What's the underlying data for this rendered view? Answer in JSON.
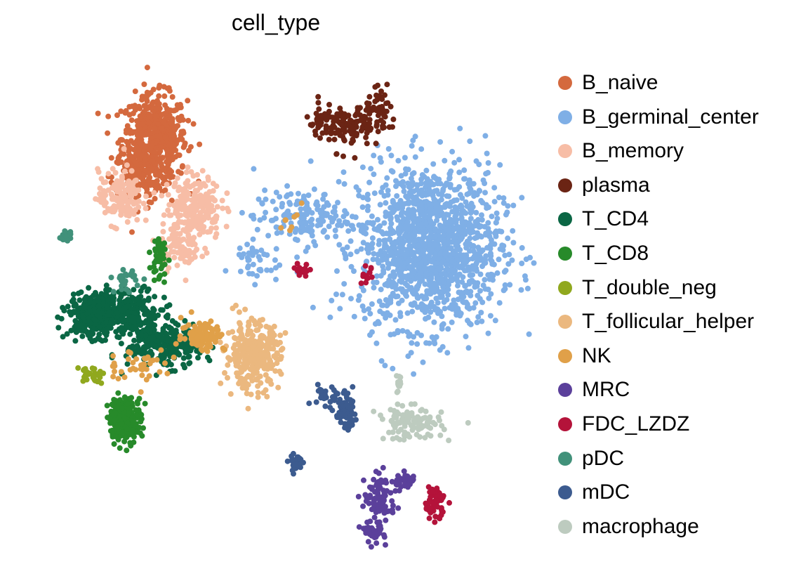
{
  "chart_data": {
    "type": "scatter",
    "title": "cell_type",
    "xlabel": "",
    "ylabel": "",
    "axes_visible": false,
    "grid": false,
    "legend_position": "right",
    "xlim": [
      0,
      100
    ],
    "ylim": [
      0,
      100
    ],
    "series": [
      {
        "name": "B_naive",
        "color": "#d4693e",
        "blobs": [
          [
            25,
            84,
            6,
            8,
            520
          ],
          [
            22,
            76,
            5,
            5,
            120
          ]
        ]
      },
      {
        "name": "B_germinal_center",
        "color": "#7fafe6",
        "blobs": [
          [
            81,
            62,
            13,
            15,
            1400
          ],
          [
            55,
            68,
            9,
            5,
            150
          ],
          [
            45,
            59,
            5,
            4,
            40
          ]
        ]
      },
      {
        "name": "B_memory",
        "color": "#f7bda6",
        "blobs": [
          [
            18,
            72,
            4,
            5,
            150
          ],
          [
            33,
            70,
            5,
            6,
            240
          ],
          [
            30,
            62,
            4,
            4,
            80
          ]
        ]
      },
      {
        "name": "plasma",
        "color": "#6b2414",
        "blobs": [
          [
            65,
            86,
            4,
            4,
            90
          ],
          [
            71,
            89,
            3,
            4,
            60
          ],
          [
            59,
            87,
            3,
            3,
            40
          ]
        ]
      },
      {
        "name": "T_CD4",
        "color": "#0a6644",
        "blobs": [
          [
            13,
            48,
            5,
            4,
            380
          ],
          [
            27,
            42,
            7,
            4,
            280
          ],
          [
            21,
            49,
            5,
            4,
            150
          ]
        ]
      },
      {
        "name": "T_CD8",
        "color": "#278a2a",
        "blobs": [
          [
            19,
            27,
            3,
            4,
            220
          ],
          [
            26,
            60,
            1.5,
            5,
            40
          ]
        ]
      },
      {
        "name": "T_double_neg",
        "color": "#90a81e",
        "blobs": [
          [
            12,
            36,
            2.5,
            1.5,
            30
          ]
        ]
      },
      {
        "name": "T_follicular_helper",
        "color": "#ebb87f",
        "blobs": [
          [
            45,
            40,
            5,
            6,
            320
          ]
        ]
      },
      {
        "name": "NK",
        "color": "#e0a049",
        "blobs": [
          [
            35,
            44,
            4,
            3,
            100
          ],
          [
            22,
            38,
            6,
            3,
            40
          ],
          [
            52,
            67,
            4,
            4,
            8
          ]
        ]
      },
      {
        "name": "MRC",
        "color": "#5b409b",
        "blobs": [
          [
            71,
            11,
            3,
            4,
            80
          ],
          [
            76,
            14,
            2,
            2,
            30
          ],
          [
            70,
            4,
            2,
            2,
            40
          ]
        ]
      },
      {
        "name": "FDC_LZDZ",
        "color": "#b4133a",
        "blobs": [
          [
            82,
            10,
            2,
            3,
            60
          ],
          [
            55,
            57,
            1.5,
            1.5,
            18
          ],
          [
            68,
            56,
            1.5,
            1.5,
            12
          ]
        ]
      },
      {
        "name": "pDC",
        "color": "#41917a",
        "blobs": [
          [
            7,
            64,
            1,
            1,
            20
          ],
          [
            19,
            55,
            2,
            2,
            30
          ]
        ]
      },
      {
        "name": "mDC",
        "color": "#3c5b8f",
        "blobs": [
          [
            64,
            28,
            2,
            3,
            80
          ],
          [
            54,
            18,
            1.5,
            2,
            30
          ],
          [
            60,
            32,
            3,
            2,
            25
          ]
        ]
      },
      {
        "name": "macrophage",
        "color": "#bdcbbf",
        "blobs": [
          [
            77,
            26,
            6,
            3,
            110
          ],
          [
            75,
            34,
            1,
            2,
            15
          ]
        ]
      }
    ]
  }
}
